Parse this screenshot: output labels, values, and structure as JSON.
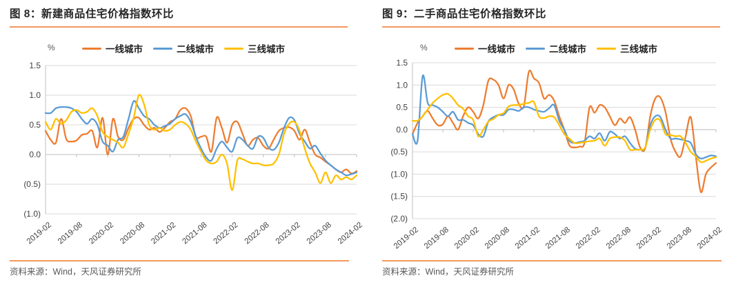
{
  "page": {
    "background": "#FFFFFF"
  },
  "colors": {
    "accent_rule": "#F1985B",
    "title_text": "#262626",
    "source_text": "#595959",
    "axis_text": "#404040",
    "gridline": "#D9D9D9",
    "axis_line": "#BFBFBF",
    "legend_text": "#1F1F1F"
  },
  "figures": [
    {
      "title": "图 8：新建商品住宅价格指数环比",
      "unit_label": "%",
      "source": "资料来源：Wind，天风证券研究所",
      "chart_data": {
        "type": "line",
        "x_start": "2019-02",
        "x_end": "2024-02",
        "x_frequency": "monthly",
        "x_tick_labels": [
          "2019-02",
          "2019-08",
          "2020-02",
          "2020-08",
          "2021-02",
          "2021-08",
          "2022-02",
          "2022-08",
          "2023-02",
          "2023-08",
          "2024-02"
        ],
        "ylabel": "%",
        "ylim": [
          -1.0,
          1.5
        ],
        "y_tick_labels": [
          "1.5",
          "1.0",
          "0.5",
          "0.0",
          "(0.5)",
          "(1.0)"
        ],
        "grid": true,
        "legend_position": "top",
        "series": [
          {
            "name": "一线城市",
            "color": "#ED7D31",
            "values": [
              0.4,
              0.25,
              0.2,
              0.6,
              0.26,
              0.22,
              0.24,
              0.33,
              0.35,
              0.4,
              0.12,
              0.62,
              0.0,
              0.6,
              0.3,
              0.25,
              0.45,
              0.6,
              0.62,
              0.5,
              0.42,
              0.45,
              0.38,
              0.45,
              0.55,
              0.6,
              0.75,
              0.78,
              0.65,
              0.3,
              0.3,
              0.3,
              0.05,
              0.62,
              0.45,
              0.2,
              0.5,
              0.55,
              0.35,
              0.15,
              0.25,
              0.28,
              0.15,
              0.1,
              0.25,
              0.4,
              0.45,
              0.46,
              0.4,
              0.25,
              0.42,
              0.2,
              0.0,
              -0.05,
              -0.12,
              -0.18,
              -0.25,
              -0.3,
              -0.25,
              -0.32,
              -0.28
            ]
          },
          {
            "name": "二线城市",
            "color": "#5B9BD5",
            "values": [
              0.7,
              0.7,
              0.78,
              0.8,
              0.8,
              0.78,
              0.72,
              0.6,
              0.52,
              0.6,
              0.5,
              0.22,
              0.15,
              0.05,
              0.25,
              0.3,
              0.6,
              0.9,
              0.78,
              0.65,
              0.6,
              0.5,
              0.45,
              0.48,
              0.52,
              0.6,
              0.65,
              0.68,
              0.55,
              0.3,
              0.1,
              -0.05,
              -0.1,
              0.1,
              0.22,
              0.12,
              0.05,
              0.28,
              0.25,
              0.15,
              0.1,
              0.3,
              0.28,
              0.12,
              0.08,
              0.2,
              0.45,
              0.62,
              0.58,
              0.35,
              0.22,
              0.1,
              0.15,
              0.02,
              -0.1,
              -0.18,
              -0.25,
              -0.3,
              -0.35,
              -0.33,
              -0.3
            ]
          },
          {
            "name": "三线城市",
            "color": "#FFC000",
            "values": [
              0.55,
              0.42,
              0.6,
              0.52,
              0.58,
              0.72,
              0.75,
              0.7,
              0.72,
              0.78,
              0.65,
              0.38,
              0.3,
              0.25,
              0.2,
              0.12,
              0.35,
              0.62,
              1.0,
              0.85,
              0.5,
              0.42,
              0.45,
              0.4,
              0.42,
              0.5,
              0.55,
              0.52,
              0.42,
              0.22,
              0.05,
              -0.1,
              -0.15,
              -0.12,
              0.0,
              -0.15,
              -0.6,
              -0.1,
              -0.08,
              -0.12,
              -0.15,
              -0.15,
              -0.18,
              -0.18,
              -0.15,
              0.0,
              0.35,
              0.52,
              0.55,
              0.4,
              0.1,
              -0.15,
              -0.3,
              -0.48,
              -0.3,
              -0.48,
              -0.35,
              -0.42,
              -0.38,
              -0.42,
              -0.35
            ]
          }
        ]
      }
    },
    {
      "title": "图 9：二手商品住宅价格指数环比",
      "unit_label": "%",
      "source": "资料来源：Wind，天风证券研究所",
      "chart_data": {
        "type": "line",
        "x_start": "2019-02",
        "x_end": "2024-02",
        "x_frequency": "monthly",
        "x_tick_labels": [
          "2019-02",
          "2019-08",
          "2020-02",
          "2020-08",
          "2021-02",
          "2021-08",
          "2022-02",
          "2022-08",
          "2023-02",
          "2023-08",
          "2024-02"
        ],
        "ylabel": "%",
        "ylim": [
          -2.0,
          1.5
        ],
        "y_tick_labels": [
          "1.5",
          "1.0",
          "0.5",
          "0.0",
          "(0.5)",
          "(1.0)",
          "(1.5)",
          "(2.0)"
        ],
        "grid": true,
        "legend_position": "top",
        "series": [
          {
            "name": "一线城市",
            "color": "#ED7D31",
            "values": [
              -0.1,
              0.15,
              0.3,
              0.42,
              0.25,
              0.1,
              0.12,
              0.3,
              0.15,
              0.0,
              0.3,
              0.5,
              0.4,
              0.25,
              0.55,
              1.1,
              1.12,
              1.0,
              0.7,
              1.0,
              0.9,
              0.58,
              0.52,
              1.3,
              1.15,
              1.05,
              0.7,
              0.78,
              0.65,
              0.3,
              0.0,
              -0.35,
              -0.4,
              -0.38,
              -0.3,
              0.5,
              0.38,
              0.55,
              0.5,
              0.3,
              0.1,
              0.25,
              0.15,
              0.28,
              0.0,
              -0.4,
              -0.42,
              0.3,
              0.7,
              0.72,
              0.4,
              -0.2,
              -0.5,
              -0.6,
              -0.15,
              0.28,
              -0.6,
              -1.4,
              -1.0,
              -0.85,
              -0.75
            ]
          },
          {
            "name": "二线城市",
            "color": "#5B9BD5",
            "values": [
              -0.1,
              -0.25,
              1.2,
              0.6,
              0.55,
              0.5,
              0.4,
              0.3,
              0.4,
              0.22,
              0.22,
              0.15,
              0.1,
              -0.1,
              -0.15,
              0.18,
              0.28,
              0.33,
              0.33,
              0.45,
              0.45,
              0.42,
              0.5,
              0.5,
              0.45,
              0.42,
              0.4,
              0.48,
              0.55,
              0.2,
              0.0,
              -0.25,
              -0.3,
              -0.28,
              -0.25,
              -0.15,
              -0.2,
              -0.08,
              -0.25,
              -0.05,
              -0.1,
              -0.2,
              -0.15,
              -0.3,
              -0.43,
              -0.45,
              -0.4,
              0.1,
              0.3,
              0.28,
              0.0,
              -0.2,
              -0.2,
              -0.22,
              -0.25,
              -0.3,
              -0.55,
              -0.65,
              -0.62,
              -0.58,
              -0.6
            ]
          },
          {
            "name": "三线城市",
            "color": "#FFC000",
            "values": [
              0.2,
              0.2,
              0.3,
              0.45,
              0.6,
              0.7,
              0.78,
              0.8,
              0.7,
              0.55,
              0.47,
              0.3,
              0.22,
              -0.15,
              0.0,
              0.18,
              0.24,
              0.33,
              0.37,
              0.52,
              0.55,
              0.55,
              0.58,
              0.6,
              0.62,
              0.3,
              0.26,
              0.3,
              0.28,
              0.1,
              -0.1,
              -0.2,
              -0.3,
              -0.3,
              -0.28,
              -0.26,
              -0.25,
              -0.2,
              -0.36,
              -0.2,
              -0.17,
              -0.17,
              -0.25,
              -0.45,
              -0.45,
              -0.45,
              -0.4,
              0.0,
              0.22,
              0.2,
              -0.1,
              -0.12,
              -0.15,
              -0.15,
              -0.3,
              -0.5,
              -0.6,
              -0.73,
              -0.7,
              -0.65,
              -0.62
            ]
          }
        ]
      }
    }
  ]
}
